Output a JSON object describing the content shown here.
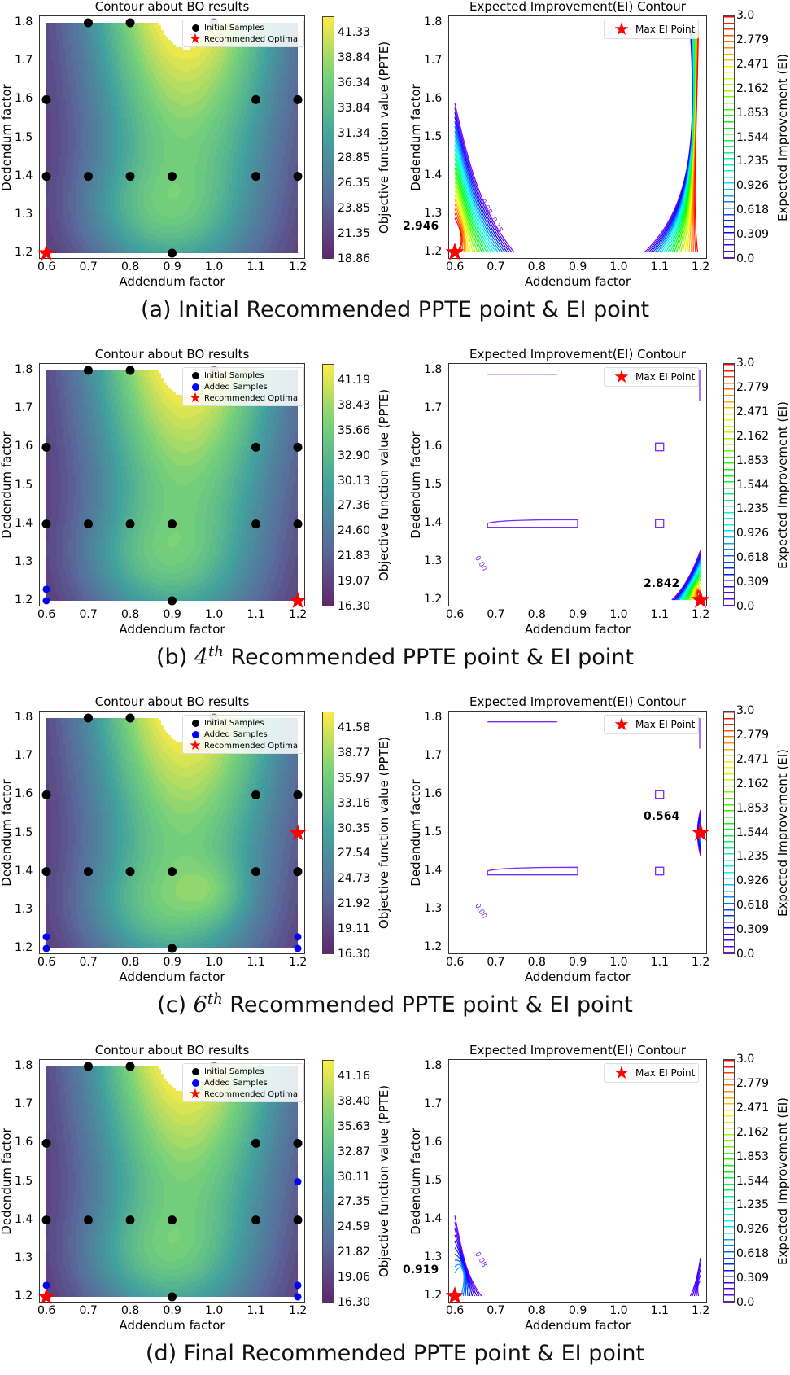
{
  "colors": {
    "initial": "#000000",
    "added": "#0000ff",
    "star": "#ff0000",
    "ei_line": "#7b2cf5"
  },
  "chart_data": [
    {
      "type": "contour",
      "caption": {
        "prefix": "(a) ",
        "ordinal": "",
        "sup": "",
        "rest": "Initial Recommended PPTE point & EI point"
      },
      "left": {
        "title": "Contour about BO results",
        "xlabel": "Addendum factor",
        "ylabel": "Dedendum factor",
        "colorbar_label": "Objective function value (PPTE)",
        "colorbar_ticks": [
          "41.33",
          "38.84",
          "36.34",
          "33.84",
          "31.34",
          "28.85",
          "26.35",
          "23.85",
          "21.35",
          "18.86"
        ],
        "legend": [
          "Initial Samples",
          "Recommended Optimal"
        ],
        "initial_samples": [
          [
            0.7,
            1.8
          ],
          [
            0.8,
            1.8
          ],
          [
            1.0,
            1.8
          ],
          [
            0.6,
            1.6
          ],
          [
            1.1,
            1.6
          ],
          [
            1.2,
            1.6
          ],
          [
            0.6,
            1.4
          ],
          [
            0.7,
            1.4
          ],
          [
            0.8,
            1.4
          ],
          [
            0.9,
            1.4
          ],
          [
            1.1,
            1.4
          ],
          [
            1.2,
            1.4
          ],
          [
            0.9,
            1.2
          ]
        ],
        "added_samples": [],
        "recommended": [
          0.6,
          1.2
        ]
      },
      "right": {
        "title": "Expected Improvement(EI) Contour",
        "xlabel": "Addendum factor",
        "ylabel": "Dedendum factor",
        "colorbar_label": "Expected Improvement (EI)",
        "colorbar_ticks": [
          "3.0",
          "2.779",
          "2.471",
          "2.162",
          "1.853",
          "1.544",
          "1.235",
          "0.926",
          "0.618",
          "0.309",
          "0.0"
        ],
        "legend": [
          "Max EI Point"
        ],
        "max_ei_point": [
          0.6,
          1.2
        ],
        "max_ei_value": "2.946",
        "contour_labels": [
          "0.08",
          "0.15"
        ],
        "regions": [
          "left",
          "right"
        ]
      }
    },
    {
      "type": "contour",
      "caption": {
        "prefix": "(b) ",
        "ordinal": "4",
        "sup": "th",
        "rest": " Recommended PPTE point & EI point"
      },
      "left": {
        "title": "Contour about BO results",
        "xlabel": "Addendum factor",
        "ylabel": "Dedendum factor",
        "colorbar_label": "Objective function value (PPTE)",
        "colorbar_ticks": [
          "41.19",
          "38.43",
          "35.66",
          "32.90",
          "30.13",
          "27.36",
          "24.60",
          "21.83",
          "19.07",
          "16.30"
        ],
        "legend": [
          "Initial Samples",
          "Added Samples",
          "Recommended Optimal"
        ],
        "initial_samples": [
          [
            0.7,
            1.8
          ],
          [
            0.8,
            1.8
          ],
          [
            1.0,
            1.8
          ],
          [
            0.6,
            1.6
          ],
          [
            1.1,
            1.6
          ],
          [
            1.2,
            1.6
          ],
          [
            0.6,
            1.4
          ],
          [
            0.7,
            1.4
          ],
          [
            0.8,
            1.4
          ],
          [
            0.9,
            1.4
          ],
          [
            1.1,
            1.4
          ],
          [
            1.2,
            1.4
          ],
          [
            0.9,
            1.2
          ]
        ],
        "added_samples": [
          [
            0.6,
            1.2
          ],
          [
            0.6,
            1.23
          ]
        ],
        "recommended": [
          1.2,
          1.2
        ]
      },
      "right": {
        "title": "Expected Improvement(EI) Contour",
        "xlabel": "Addendum factor",
        "ylabel": "Dedendum factor",
        "colorbar_label": "Expected Improvement (EI)",
        "colorbar_ticks": [
          "3.0",
          "2.779",
          "2.471",
          "2.162",
          "1.853",
          "1.544",
          "1.235",
          "0.926",
          "0.618",
          "0.309",
          "0.0"
        ],
        "legend": [
          "Max EI Point"
        ],
        "max_ei_point": [
          1.2,
          1.2
        ],
        "max_ei_value": "2.842",
        "contour_labels": [
          "0.00"
        ],
        "regions": [
          "br"
        ]
      }
    },
    {
      "type": "contour",
      "caption": {
        "prefix": "(c) ",
        "ordinal": "6",
        "sup": "th",
        "rest": " Recommended PPTE point & EI point"
      },
      "left": {
        "title": "Contour about BO results",
        "xlabel": "Addendum factor",
        "ylabel": "Dedendum factor",
        "colorbar_label": "Objective function value (PPTE)",
        "colorbar_ticks": [
          "41.58",
          "38.77",
          "35.97",
          "33.16",
          "30.35",
          "27.54",
          "24.73",
          "21.92",
          "19.11",
          "16.30"
        ],
        "legend": [
          "Initial Samples",
          "Added Samples",
          "Recommended Optimal"
        ],
        "initial_samples": [
          [
            0.7,
            1.8
          ],
          [
            0.8,
            1.8
          ],
          [
            1.0,
            1.8
          ],
          [
            0.6,
            1.6
          ],
          [
            1.1,
            1.6
          ],
          [
            1.2,
            1.6
          ],
          [
            0.6,
            1.4
          ],
          [
            0.7,
            1.4
          ],
          [
            0.8,
            1.4
          ],
          [
            0.9,
            1.4
          ],
          [
            1.1,
            1.4
          ],
          [
            1.2,
            1.4
          ],
          [
            0.9,
            1.2
          ]
        ],
        "added_samples": [
          [
            0.6,
            1.2
          ],
          [
            0.6,
            1.23
          ],
          [
            1.2,
            1.23
          ],
          [
            1.2,
            1.2
          ]
        ],
        "recommended": [
          1.2,
          1.5
        ]
      },
      "right": {
        "title": "Expected Improvement(EI) Contour",
        "xlabel": "Addendum factor",
        "ylabel": "Dedendum factor",
        "colorbar_label": "Expected Improvement (EI)",
        "colorbar_ticks": [
          "3.0",
          "2.779",
          "2.471",
          "2.162",
          "1.853",
          "1.544",
          "1.235",
          "0.926",
          "0.618",
          "0.309",
          "0.0"
        ],
        "legend": [
          "Max EI Point"
        ],
        "max_ei_point": [
          1.2,
          1.5
        ],
        "max_ei_value": "0.564",
        "contour_labels": [
          "0.00"
        ],
        "regions": [
          "mr"
        ]
      }
    },
    {
      "type": "contour",
      "caption": {
        "prefix": "(d) ",
        "ordinal": "",
        "sup": "",
        "rest": "Final Recommended PPTE point & EI point"
      },
      "left": {
        "title": "Contour about BO results",
        "xlabel": "Addendum factor",
        "ylabel": "Dedendum factor",
        "colorbar_label": "Objective function value (PPTE)",
        "colorbar_ticks": [
          "41.16",
          "38.40",
          "35.63",
          "32.87",
          "30.11",
          "27.35",
          "24.59",
          "21.82",
          "19.06",
          "16.30"
        ],
        "legend": [
          "Initial Samples",
          "Added Samples",
          "Recommended Optimal"
        ],
        "initial_samples": [
          [
            0.7,
            1.8
          ],
          [
            0.8,
            1.8
          ],
          [
            1.0,
            1.8
          ],
          [
            0.6,
            1.6
          ],
          [
            1.1,
            1.6
          ],
          [
            1.2,
            1.6
          ],
          [
            0.6,
            1.4
          ],
          [
            0.7,
            1.4
          ],
          [
            0.8,
            1.4
          ],
          [
            0.9,
            1.4
          ],
          [
            1.1,
            1.4
          ],
          [
            1.2,
            1.4
          ],
          [
            0.9,
            1.2
          ]
        ],
        "added_samples": [
          [
            0.6,
            1.2
          ],
          [
            0.6,
            1.23
          ],
          [
            1.2,
            1.23
          ],
          [
            1.2,
            1.2
          ],
          [
            1.2,
            1.5
          ]
        ],
        "recommended": [
          0.6,
          1.2
        ]
      },
      "right": {
        "title": "Expected Improvement(EI) Contour",
        "xlabel": "Addendum factor",
        "ylabel": "Dedendum factor",
        "colorbar_label": "Expected Improvement (EI)",
        "colorbar_ticks": [
          "3.0",
          "2.779",
          "2.471",
          "2.162",
          "1.853",
          "1.544",
          "1.235",
          "0.926",
          "0.618",
          "0.309",
          "0.0"
        ],
        "legend": [
          "Max EI Point"
        ],
        "max_ei_point": [
          0.6,
          1.2
        ],
        "max_ei_value": "0.919",
        "contour_labels": [
          "0.08"
        ],
        "regions": [
          "small"
        ]
      }
    }
  ],
  "axes": {
    "xticks": [
      "0.6",
      "0.7",
      "0.8",
      "0.9",
      "1.0",
      "1.1",
      "1.2"
    ],
    "yticks": [
      "1.2",
      "1.3",
      "1.4",
      "1.5",
      "1.6",
      "1.7",
      "1.8"
    ],
    "xlim": [
      0.6,
      1.2
    ],
    "ylim": [
      1.2,
      1.8
    ]
  }
}
